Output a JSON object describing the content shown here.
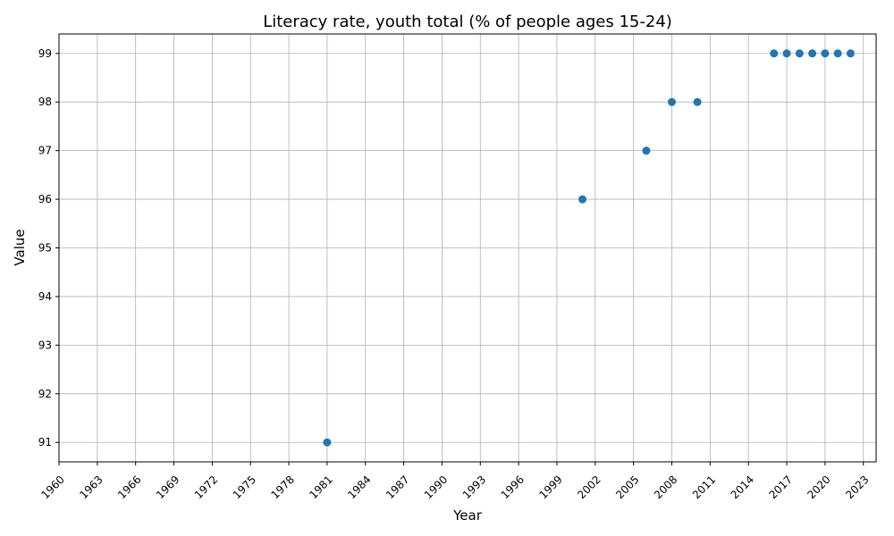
{
  "chart_data": {
    "type": "scatter",
    "title": "Literacy rate, youth total (% of people ages 15-24)",
    "xlabel": "Year",
    "ylabel": "Value",
    "xlim": [
      1960,
      2024
    ],
    "ylim": [
      90.6,
      99.4
    ],
    "x_ticks": [
      1960,
      1963,
      1966,
      1969,
      1972,
      1975,
      1978,
      1981,
      1984,
      1987,
      1990,
      1993,
      1996,
      1999,
      2002,
      2005,
      2008,
      2011,
      2014,
      2017,
      2020,
      2023
    ],
    "y_ticks": [
      91,
      92,
      93,
      94,
      95,
      96,
      97,
      98,
      99
    ],
    "grid": true,
    "marker_color": "#1f77b4",
    "series": [
      {
        "name": "Literacy rate",
        "x": [
          1981,
          2001,
          2006,
          2008,
          2010,
          2016,
          2017,
          2018,
          2019,
          2020,
          2021,
          2022
        ],
        "y": [
          91,
          96,
          97,
          98,
          98,
          99,
          99,
          99,
          99,
          99,
          99,
          99
        ]
      }
    ]
  }
}
